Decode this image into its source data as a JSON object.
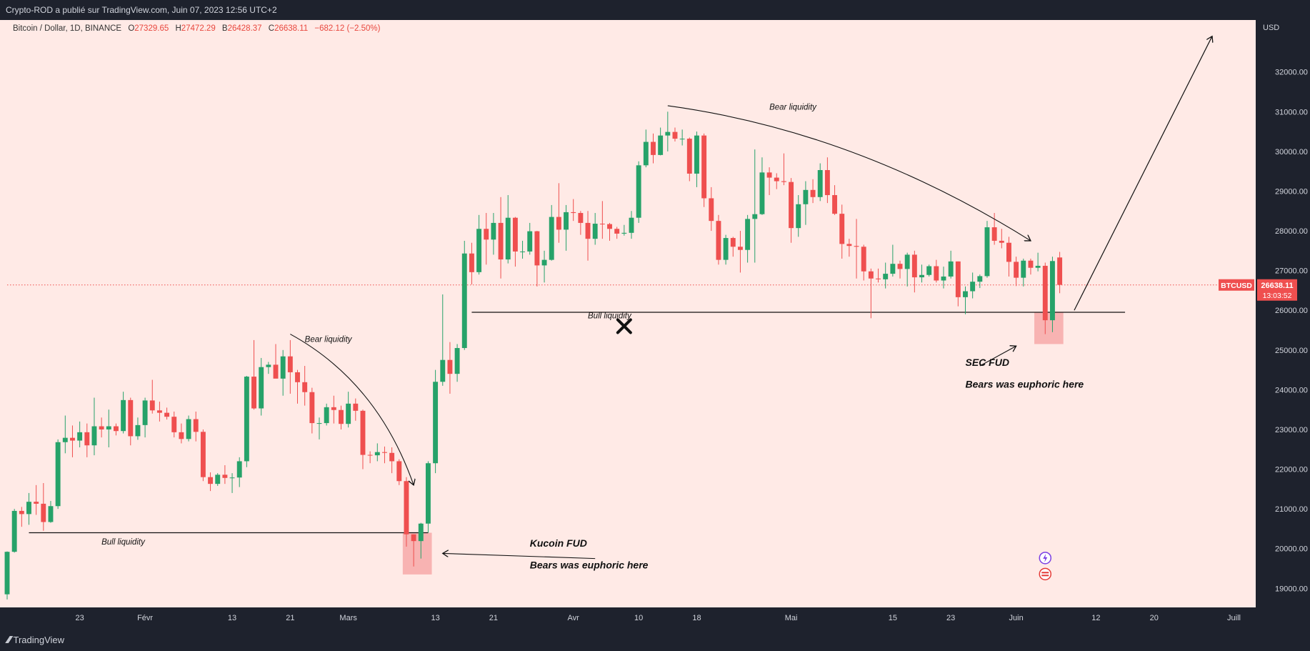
{
  "header": {
    "publisher_line": "Crypto-ROD a publié sur TradingView.com, Juin 07, 2023 12:56 UTC+2"
  },
  "legend": {
    "symbol": "Bitcoin / Dollar, 1D, BINANCE",
    "open_label": "O",
    "open": "27329.65",
    "high_label": "H",
    "high": "27472.29",
    "low_label": "B",
    "low": "26428.37",
    "close_label": "C",
    "close": "26638.11",
    "change": "−682.12 (−2.50%)"
  },
  "price_axis": {
    "currency": "USD",
    "ticker_label": "BTCUSD",
    "last_price": "26638.11",
    "countdown": "13:03:52"
  },
  "footer": {
    "brand": "TradingView"
  },
  "colors": {
    "background": "#ffeae6",
    "up": "#26a269",
    "down": "#ef4f4f",
    "axis_bg": "#1e222d",
    "highlight": "#f5a0a0",
    "price_tag": "#ef4f4f"
  },
  "chart_data": {
    "type": "candlestick",
    "x_unit": "date",
    "ylim": [
      18700,
      33200
    ],
    "y_ticks": [
      19000,
      20000,
      21000,
      22000,
      23000,
      24000,
      25000,
      26000,
      27000,
      28000,
      29000,
      30000,
      31000,
      32000
    ],
    "y_tick_labels": [
      "19000.00",
      "20000.00",
      "21000.00",
      "22000.00",
      "23000.00",
      "24000.00",
      "25000.00",
      "26000.00",
      "27000.00",
      "28000.00",
      "29000.00",
      "30000.00",
      "31000.00",
      "32000.00"
    ],
    "x_ticks": [
      {
        "label": "23",
        "date": "2023-01-23"
      },
      {
        "label": "Févr",
        "date": "2023-02-01"
      },
      {
        "label": "13",
        "date": "2023-02-13"
      },
      {
        "label": "21",
        "date": "2023-02-21"
      },
      {
        "label": "Mars",
        "date": "2023-03-01"
      },
      {
        "label": "13",
        "date": "2023-03-13"
      },
      {
        "label": "21",
        "date": "2023-03-21"
      },
      {
        "label": "Avr",
        "date": "2023-04-01"
      },
      {
        "label": "10",
        "date": "2023-04-10"
      },
      {
        "label": "18",
        "date": "2023-04-18"
      },
      {
        "label": "Mai",
        "date": "2023-05-01"
      },
      {
        "label": "15",
        "date": "2023-05-15"
      },
      {
        "label": "23",
        "date": "2023-05-23"
      },
      {
        "label": "Juin",
        "date": "2023-06-01"
      },
      {
        "label": "12",
        "date": "2023-06-12"
      },
      {
        "label": "20",
        "date": "2023-06-20"
      },
      {
        "label": "Juill",
        "date": "2023-07-01"
      }
    ],
    "x_start": "2023-01-13",
    "x_end": "2023-07-04",
    "current_price": 26638.11,
    "candles": [
      [
        "2023-01-13",
        18850,
        19930,
        18720,
        19920
      ],
      [
        "2023-01-14",
        19920,
        21000,
        19900,
        20950
      ],
      [
        "2023-01-15",
        20950,
        21050,
        20550,
        20870
      ],
      [
        "2023-01-16",
        20870,
        21400,
        20600,
        21180
      ],
      [
        "2023-01-17",
        21180,
        21600,
        20850,
        21130
      ],
      [
        "2023-01-18",
        21130,
        21650,
        20450,
        20670
      ],
      [
        "2023-01-19",
        20670,
        21200,
        20650,
        21070
      ],
      [
        "2023-01-20",
        21070,
        22750,
        21000,
        22680
      ],
      [
        "2023-01-21",
        22680,
        23350,
        22400,
        22790
      ],
      [
        "2023-01-22",
        22790,
        23100,
        22300,
        22720
      ],
      [
        "2023-01-23",
        22720,
        23200,
        22550,
        22930
      ],
      [
        "2023-01-24",
        22930,
        23150,
        22300,
        22600
      ],
      [
        "2023-01-25",
        22600,
        23800,
        22350,
        23080
      ],
      [
        "2023-01-26",
        23080,
        23300,
        22800,
        23000
      ],
      [
        "2023-01-27",
        23000,
        23500,
        22550,
        23080
      ],
      [
        "2023-01-28",
        23080,
        23150,
        22850,
        22960
      ],
      [
        "2023-01-29",
        22960,
        23950,
        22900,
        23740
      ],
      [
        "2023-01-30",
        23740,
        23800,
        22600,
        22830
      ],
      [
        "2023-01-31",
        22830,
        23300,
        22740,
        23110
      ],
      [
        "2023-02-01",
        23110,
        23800,
        22800,
        23730
      ],
      [
        "2023-02-02",
        23730,
        24250,
        23400,
        23480
      ],
      [
        "2023-02-03",
        23480,
        23700,
        23200,
        23420
      ],
      [
        "2023-02-04",
        23420,
        23550,
        23250,
        23320
      ],
      [
        "2023-02-05",
        23320,
        23450,
        22800,
        22930
      ],
      [
        "2023-02-06",
        22930,
        23150,
        22650,
        22760
      ],
      [
        "2023-02-07",
        22760,
        23350,
        22700,
        23260
      ],
      [
        "2023-02-08",
        23260,
        23450,
        22700,
        22940
      ],
      [
        "2023-02-09",
        22940,
        23000,
        21700,
        21800
      ],
      [
        "2023-02-10",
        21800,
        21920,
        21450,
        21630
      ],
      [
        "2023-02-11",
        21630,
        21900,
        21580,
        21860
      ],
      [
        "2023-02-12",
        21860,
        22100,
        21630,
        21780
      ],
      [
        "2023-02-13",
        21780,
        21900,
        21400,
        21790
      ],
      [
        "2023-02-14",
        21790,
        22300,
        21550,
        22200
      ],
      [
        "2023-02-15",
        22200,
        24350,
        22050,
        24330
      ],
      [
        "2023-02-16",
        24330,
        25250,
        23500,
        23530
      ],
      [
        "2023-02-17",
        23530,
        24800,
        23350,
        24570
      ],
      [
        "2023-02-18",
        24570,
        24700,
        24400,
        24630
      ],
      [
        "2023-02-19",
        24630,
        25150,
        24300,
        24280
      ],
      [
        "2023-02-20",
        24280,
        25000,
        23850,
        24840
      ],
      [
        "2023-02-21",
        24840,
        25250,
        23900,
        24440
      ],
      [
        "2023-02-22",
        24440,
        24500,
        23650,
        24190
      ],
      [
        "2023-02-23",
        24190,
        24600,
        23600,
        23940
      ],
      [
        "2023-02-24",
        23940,
        24050,
        22900,
        23160
      ],
      [
        "2023-02-25",
        23160,
        23300,
        22750,
        23160
      ],
      [
        "2023-02-26",
        23160,
        23650,
        23100,
        23560
      ],
      [
        "2023-02-27",
        23560,
        23850,
        23150,
        23490
      ],
      [
        "2023-02-28",
        23490,
        23600,
        23000,
        23140
      ],
      [
        "2023-03-01",
        23140,
        23950,
        23050,
        23650
      ],
      [
        "2023-03-02",
        23650,
        23780,
        23220,
        23470
      ],
      [
        "2023-03-03",
        23470,
        23500,
        22000,
        22360
      ],
      [
        "2023-03-04",
        22360,
        22450,
        22150,
        22350
      ],
      [
        "2023-03-05",
        22350,
        22650,
        22200,
        22430
      ],
      [
        "2023-03-06",
        22430,
        22570,
        22150,
        22410
      ],
      [
        "2023-03-07",
        22410,
        22550,
        21900,
        22200
      ],
      [
        "2023-03-08",
        22200,
        22250,
        21600,
        21700
      ],
      [
        "2023-03-09",
        21700,
        21800,
        20050,
        20360
      ],
      [
        "2023-03-10",
        20360,
        20360,
        19550,
        20190
      ],
      [
        "2023-03-11",
        20190,
        20650,
        19750,
        20630
      ],
      [
        "2023-03-12",
        20630,
        22200,
        20400,
        22150
      ],
      [
        "2023-03-13",
        22150,
        24500,
        21900,
        24200
      ],
      [
        "2023-03-14",
        24200,
        26400,
        24100,
        24750
      ],
      [
        "2023-03-15",
        24750,
        25200,
        23900,
        24400
      ],
      [
        "2023-03-16",
        24400,
        25150,
        24200,
        25050
      ],
      [
        "2023-03-17",
        25050,
        27750,
        25000,
        27430
      ],
      [
        "2023-03-18",
        27430,
        27700,
        26650,
        26960
      ],
      [
        "2023-03-19",
        26960,
        28400,
        26900,
        28050
      ],
      [
        "2023-03-20",
        28050,
        28450,
        27150,
        27780
      ],
      [
        "2023-03-21",
        27780,
        28450,
        27400,
        28200
      ],
      [
        "2023-03-22",
        28200,
        28850,
        26800,
        27280
      ],
      [
        "2023-03-23",
        27280,
        28900,
        27180,
        28330
      ],
      [
        "2023-03-24",
        28330,
        28350,
        27100,
        27480
      ],
      [
        "2023-03-25",
        27480,
        27750,
        27300,
        27480
      ],
      [
        "2023-03-26",
        27480,
        28200,
        27400,
        27990
      ],
      [
        "2023-03-27",
        27990,
        28000,
        26600,
        27130
      ],
      [
        "2023-03-28",
        27130,
        27500,
        26700,
        27270
      ],
      [
        "2023-03-29",
        27270,
        28650,
        27250,
        28350
      ],
      [
        "2023-03-30",
        28350,
        29200,
        27700,
        28030
      ],
      [
        "2023-03-31",
        28030,
        28650,
        27500,
        28470
      ],
      [
        "2023-04-01",
        28470,
        28800,
        28250,
        28450
      ],
      [
        "2023-04-02",
        28450,
        28500,
        27900,
        28200
      ],
      [
        "2023-04-03",
        28200,
        28500,
        27250,
        27800
      ],
      [
        "2023-04-04",
        27800,
        28450,
        27650,
        28180
      ],
      [
        "2023-04-05",
        28180,
        28750,
        27800,
        28170
      ],
      [
        "2023-04-06",
        28170,
        28200,
        27750,
        28050
      ],
      [
        "2023-04-07",
        28050,
        28100,
        27800,
        27930
      ],
      [
        "2023-04-08",
        27930,
        28150,
        27880,
        27950
      ],
      [
        "2023-04-09",
        27950,
        28500,
        27800,
        28330
      ],
      [
        "2023-04-10",
        28330,
        29750,
        28200,
        29650
      ],
      [
        "2023-04-11",
        29650,
        30550,
        29600,
        30240
      ],
      [
        "2023-04-12",
        30240,
        30450,
        29700,
        29910
      ],
      [
        "2023-04-13",
        29910,
        30600,
        29900,
        30400
      ],
      [
        "2023-04-14",
        30400,
        31000,
        30000,
        30490
      ],
      [
        "2023-04-15",
        30490,
        30600,
        30250,
        30320
      ],
      [
        "2023-04-16",
        30320,
        30550,
        30150,
        30320
      ],
      [
        "2023-04-17",
        30320,
        30350,
        29250,
        29440
      ],
      [
        "2023-04-18",
        29440,
        30500,
        29100,
        30400
      ],
      [
        "2023-04-19",
        30400,
        30450,
        28600,
        28820
      ],
      [
        "2023-04-20",
        28820,
        29100,
        28000,
        28250
      ],
      [
        "2023-04-21",
        28250,
        28400,
        27150,
        27270
      ],
      [
        "2023-04-22",
        27270,
        27900,
        27150,
        27820
      ],
      [
        "2023-04-23",
        27820,
        27850,
        27350,
        27600
      ],
      [
        "2023-04-24",
        27600,
        28000,
        26950,
        27520
      ],
      [
        "2023-04-25",
        27520,
        28400,
        27200,
        28300
      ],
      [
        "2023-04-26",
        28300,
        30050,
        27200,
        28420
      ],
      [
        "2023-04-27",
        28420,
        29850,
        28400,
        29470
      ],
      [
        "2023-04-28",
        29470,
        29600,
        28900,
        29340
      ],
      [
        "2023-04-29",
        29340,
        29450,
        29050,
        29250
      ],
      [
        "2023-04-30",
        29250,
        29950,
        29150,
        29230
      ],
      [
        "2023-05-01",
        29230,
        29330,
        27700,
        28070
      ],
      [
        "2023-05-02",
        28070,
        28900,
        27850,
        28670
      ],
      [
        "2023-05-03",
        28670,
        29250,
        28150,
        29030
      ],
      [
        "2023-05-04",
        29030,
        29300,
        28700,
        28850
      ],
      [
        "2023-05-05",
        28850,
        29700,
        28750,
        29530
      ],
      [
        "2023-05-06",
        29530,
        29850,
        28700,
        28900
      ],
      [
        "2023-05-07",
        28900,
        29150,
        28400,
        28430
      ],
      [
        "2023-05-08",
        28430,
        28660,
        27300,
        27670
      ],
      [
        "2023-05-09",
        27670,
        27800,
        27350,
        27620
      ],
      [
        "2023-05-10",
        27620,
        28300,
        26800,
        27600
      ],
      [
        "2023-05-11",
        27600,
        27650,
        26750,
        26980
      ],
      [
        "2023-05-12",
        26980,
        27050,
        25800,
        26800
      ],
      [
        "2023-05-13",
        26800,
        27050,
        26700,
        26780
      ],
      [
        "2023-05-14",
        26780,
        27200,
        26550,
        26920
      ],
      [
        "2023-05-15",
        26920,
        27650,
        26850,
        27170
      ],
      [
        "2023-05-16",
        27170,
        27250,
        26800,
        27040
      ],
      [
        "2023-05-17",
        27040,
        27450,
        26600,
        27400
      ],
      [
        "2023-05-18",
        27400,
        27500,
        26450,
        26830
      ],
      [
        "2023-05-19",
        26830,
        27150,
        26700,
        26890
      ],
      [
        "2023-05-20",
        26890,
        27150,
        26850,
        27110
      ],
      [
        "2023-05-21",
        27110,
        27270,
        26700,
        26750
      ],
      [
        "2023-05-22",
        26750,
        27100,
        26550,
        26850
      ],
      [
        "2023-05-23",
        26850,
        27500,
        26800,
        27230
      ],
      [
        "2023-05-24",
        27230,
        27230,
        26100,
        26330
      ],
      [
        "2023-05-25",
        26330,
        26600,
        25900,
        26480
      ],
      [
        "2023-05-26",
        26480,
        26950,
        26300,
        26720
      ],
      [
        "2023-05-27",
        26720,
        26900,
        26560,
        26860
      ],
      [
        "2023-05-28",
        26860,
        28250,
        26820,
        28090
      ],
      [
        "2023-05-29",
        28090,
        28450,
        27650,
        27750
      ],
      [
        "2023-05-30",
        27750,
        28050,
        27560,
        27700
      ],
      [
        "2023-05-31",
        27700,
        27850,
        26850,
        27220
      ],
      [
        "2023-06-01",
        27220,
        27350,
        26610,
        26820
      ],
      [
        "2023-06-02",
        26820,
        27300,
        26600,
        27250
      ],
      [
        "2023-06-03",
        27250,
        27300,
        26900,
        27070
      ],
      [
        "2023-06-04",
        27070,
        27450,
        26980,
        27120
      ],
      [
        "2023-06-05",
        27120,
        27200,
        25400,
        25750
      ],
      [
        "2023-06-06",
        25750,
        27350,
        25450,
        27240
      ],
      [
        "2023-06-07",
        27330,
        27470,
        26430,
        26640
      ]
    ],
    "levels": [
      {
        "type": "hline",
        "label": "Bull liquidity",
        "y": 20400,
        "from": "2023-01-16",
        "to": "2023-03-12"
      },
      {
        "type": "hline",
        "label": "Bull liquidity",
        "y": 25950,
        "from": "2023-03-18",
        "to": "2023-06-16"
      }
    ],
    "highlight_boxes": [
      {
        "from": "2023-03-09",
        "to": "2023-03-12",
        "y_low": 19350,
        "y_high": 20400
      },
      {
        "from": "2023-06-04",
        "to": "2023-06-07",
        "y_low": 25150,
        "y_high": 25950
      }
    ],
    "annotations": [
      {
        "text": "Bear liquidity",
        "at": "2023-02-23",
        "y": 25200
      },
      {
        "text": "Bull liquidity",
        "at": "2023-01-26",
        "y": 20100
      },
      {
        "text": "Kucoin FUD",
        "at": "2023-03-26",
        "y": 20050
      },
      {
        "text": "Bears was euphoric here",
        "at": "2023-03-26",
        "y": 19500
      },
      {
        "text": "Bull liquidity",
        "at": "2023-04-03",
        "y": 25800
      },
      {
        "text": "Bear liquidity",
        "at": "2023-04-28",
        "y": 31050
      },
      {
        "text": "SEC FUD",
        "at": "2023-05-25",
        "y": 24600
      },
      {
        "text": "Bears was euphoric here",
        "at": "2023-05-25",
        "y": 24050
      }
    ]
  }
}
